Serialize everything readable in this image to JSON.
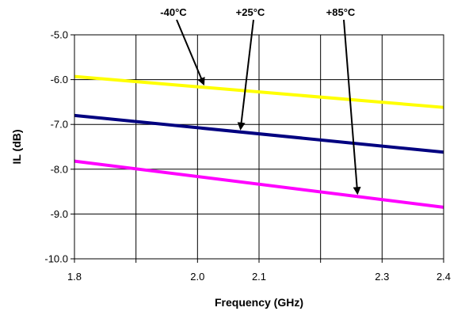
{
  "chart_data": {
    "type": "line",
    "title": "",
    "xlabel": "Frequency (GHz)",
    "ylabel": "IL (dB)",
    "xlim": [
      1.8,
      2.4
    ],
    "ylim": [
      -10.0,
      -5.0
    ],
    "x_ticks": [
      1.8,
      1.9,
      2.0,
      2.1,
      2.2,
      2.3,
      2.4
    ],
    "x_tick_labels": [
      "1.8",
      "",
      "2.0",
      "2.1",
      "",
      "2.3",
      "2.4"
    ],
    "y_ticks": [
      -10.0,
      -9.0,
      -8.0,
      -7.0,
      -6.0,
      -5.0
    ],
    "y_tick_labels": [
      "-10.0",
      "-9.0",
      "-8.0",
      "-7.0",
      "-6.0",
      "-5.0"
    ],
    "grid": true,
    "legend": "none",
    "series": [
      {
        "name": "-40°C",
        "color": "#ffff00",
        "x": [
          1.8,
          2.4
        ],
        "y": [
          -5.93,
          -6.62
        ]
      },
      {
        "name": "+25°C",
        "color": "#000080",
        "x": [
          1.8,
          2.4
        ],
        "y": [
          -6.8,
          -7.62
        ]
      },
      {
        "name": "+85°C",
        "color": "#ff00ff",
        "x": [
          1.8,
          2.4
        ],
        "y": [
          -7.82,
          -8.85
        ]
      }
    ],
    "annotations": [
      {
        "text": "-40°C",
        "series": 0,
        "x": 2.01
      },
      {
        "text": "+25°C",
        "series": 1,
        "x": 2.07
      },
      {
        "text": "+85°C",
        "series": 2,
        "x": 2.26
      }
    ]
  }
}
